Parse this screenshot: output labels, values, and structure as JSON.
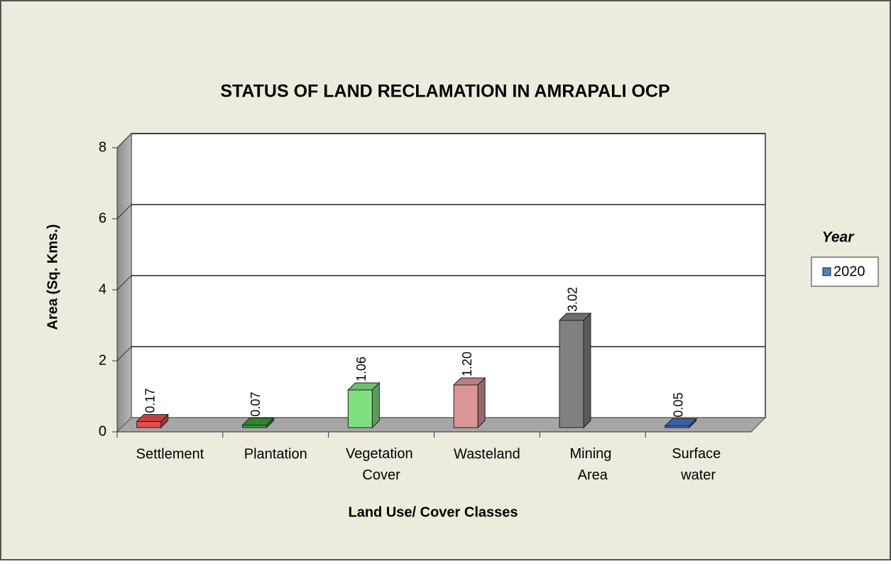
{
  "chart_data": {
    "type": "bar",
    "title": "STATUS OF LAND RECLAMATION  IN AMRAPALI OCP",
    "xlabel": "Land Use/ Cover Classes",
    "ylabel": "Area (Sq. Kms.)",
    "categories": [
      "Settlement",
      "Plantation",
      "Vegetation Cover",
      "Wasteland",
      "Mining Area",
      "Surface water"
    ],
    "series": [
      {
        "name": "2020",
        "color": "#4f81bd",
        "values": [
          0.17,
          0.07,
          1.06,
          1.2,
          3.02,
          0.05
        ],
        "colors": [
          "#e84c4c",
          "#3a9a3a",
          "#7fe07f",
          "#d99694",
          "#808080",
          "#4472c4"
        ]
      }
    ],
    "value_labels": [
      "0.17",
      "0.07",
      "1.06",
      "1.20",
      "3.02",
      "0.05"
    ],
    "ylim": [
      0,
      8
    ],
    "yticks": [
      0,
      2,
      4,
      6,
      8
    ],
    "grid": true,
    "legend_title": "Year",
    "legend": "right"
  }
}
